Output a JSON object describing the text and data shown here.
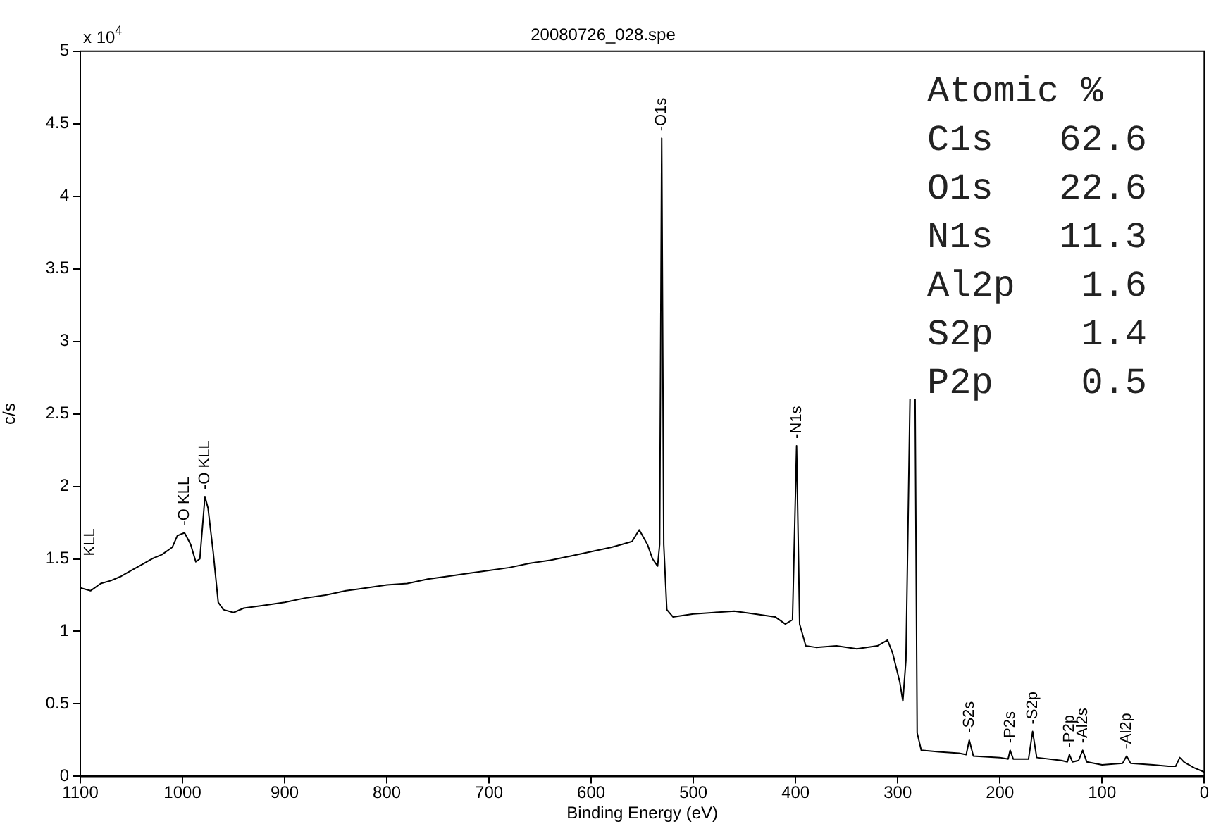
{
  "chart_data": {
    "type": "line",
    "title": "20080726_028.spe",
    "xlabel": "Binding Energy (eV)",
    "ylabel": "c/s",
    "xlim": [
      1100,
      0
    ],
    "xticks": [
      1100,
      1000,
      900,
      800,
      700,
      600,
      500,
      400,
      300,
      200,
      100,
      0
    ],
    "ylim": [
      0,
      5
    ],
    "yticks": [
      0,
      0.5,
      1,
      1.5,
      2,
      2.5,
      3,
      3.5,
      4,
      4.5,
      5
    ],
    "grid": false,
    "legend": false,
    "marker": "none",
    "line_style": "solid",
    "x": [
      1100,
      1090,
      1080,
      1070,
      1060,
      1050,
      1040,
      1030,
      1020,
      1010,
      1005,
      998,
      992,
      987,
      983,
      978,
      975,
      970,
      965,
      960,
      950,
      940,
      920,
      900,
      880,
      860,
      840,
      820,
      800,
      780,
      760,
      740,
      720,
      700,
      680,
      660,
      640,
      620,
      600,
      580,
      570,
      560,
      553,
      545,
      540,
      535,
      533,
      531,
      529,
      526,
      520,
      500,
      480,
      460,
      440,
      420,
      410,
      403,
      399,
      396,
      390,
      380,
      360,
      340,
      320,
      310,
      305,
      298,
      295,
      292,
      288,
      285,
      283,
      281,
      277,
      260,
      240,
      233,
      230,
      226,
      200,
      192,
      190,
      187,
      172,
      168,
      164,
      140,
      134,
      132,
      129,
      123,
      119,
      115,
      100,
      80,
      76,
      72,
      50,
      35,
      28,
      24,
      20,
      10,
      0
    ],
    "series": [
      {
        "color": "#000000",
        "values": [
          1.3,
          1.28,
          1.33,
          1.35,
          1.38,
          1.42,
          1.46,
          1.5,
          1.53,
          1.58,
          1.66,
          1.68,
          1.6,
          1.48,
          1.5,
          1.93,
          1.85,
          1.55,
          1.2,
          1.15,
          1.13,
          1.16,
          1.18,
          1.2,
          1.23,
          1.25,
          1.28,
          1.3,
          1.32,
          1.33,
          1.36,
          1.38,
          1.4,
          1.42,
          1.44,
          1.47,
          1.49,
          1.52,
          1.55,
          1.58,
          1.6,
          1.62,
          1.7,
          1.6,
          1.5,
          1.45,
          1.6,
          4.4,
          1.6,
          1.15,
          1.1,
          1.12,
          1.13,
          1.14,
          1.12,
          1.1,
          1.05,
          1.08,
          2.28,
          1.05,
          0.9,
          0.89,
          0.9,
          0.88,
          0.9,
          0.94,
          0.85,
          0.65,
          0.52,
          0.8,
          2.6,
          null,
          2.6,
          0.3,
          0.18,
          0.17,
          0.16,
          0.15,
          0.25,
          0.14,
          0.13,
          0.12,
          0.18,
          0.12,
          0.12,
          0.31,
          0.13,
          0.11,
          0.1,
          0.15,
          0.1,
          0.11,
          0.18,
          0.1,
          0.08,
          0.09,
          0.14,
          0.09,
          0.08,
          0.07,
          0.07,
          0.13,
          0.1,
          0.06,
          0.03
        ]
      }
    ],
    "annotations": [
      "x 10$^{4}$",
      "Atomic %",
      "C1s   62.6",
      "O1s   22.6",
      "N1s   11.3",
      "Al2p   1.6",
      "S2p    1.4",
      "P2p    0.5",
      "KLL",
      {
        "text": "-O1s",
        "x": 531,
        "y": 4.4
      },
      {
        "text": "-N1s",
        "x": 399,
        "y": 2.28
      },
      {
        "text": "-O KLL",
        "x": 998,
        "y": 1.68
      },
      {
        "text": "-O KLL",
        "x": 978,
        "y": 1.93
      },
      {
        "text": "-S2s",
        "x": 230,
        "y": 0.25
      },
      {
        "text": "-P2s",
        "x": 190,
        "y": 0.18
      },
      {
        "text": "-S2p",
        "x": 168,
        "y": 0.31
      },
      {
        "text": "-P2p",
        "x": 132,
        "y": 0.15
      },
      {
        "text": "-Al2s",
        "x": 119,
        "y": 0.18
      },
      {
        "text": "-Al2p",
        "x": 76,
        "y": 0.14
      }
    ]
  }
}
